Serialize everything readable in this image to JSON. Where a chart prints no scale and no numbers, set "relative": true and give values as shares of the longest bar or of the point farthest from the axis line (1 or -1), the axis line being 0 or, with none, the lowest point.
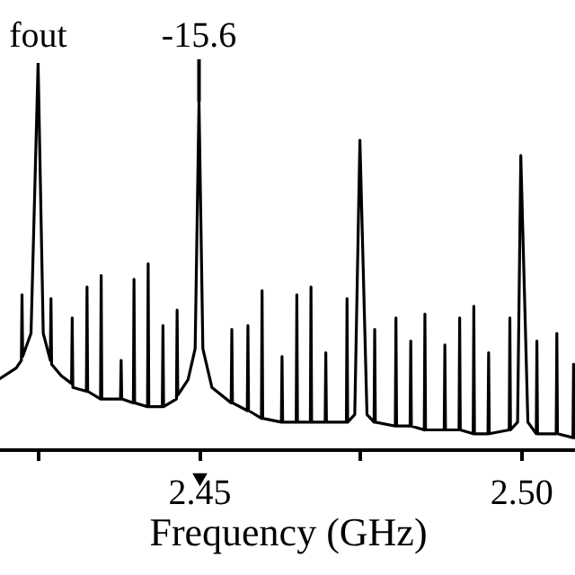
{
  "chart_data": {
    "type": "line",
    "relative": true,
    "xlabel": "Frequency (GHz)",
    "color": "#000000",
    "annotations": [
      {
        "text": "fout",
        "x": 2.425,
        "y": 1.0
      },
      {
        "text": "-15.6",
        "x": 2.45,
        "y": 0.9
      }
    ],
    "xlim": [
      2.4188,
      2.5087
    ],
    "xticks": [
      {
        "value": 2.425,
        "label": null
      },
      {
        "value": 2.45,
        "label": "2.45"
      },
      {
        "value": 2.475,
        "label": null
      },
      {
        "value": 2.5,
        "label": "2.50"
      }
    ],
    "x": [
      2.4188,
      2.4216,
      2.4224,
      2.4225,
      2.4226,
      2.4239,
      2.425,
      2.4258,
      2.4269,
      2.427,
      2.4271,
      2.4286,
      2.4302,
      2.4303,
      2.4304,
      2.4325,
      2.4326,
      2.4327,
      2.4347,
      2.4348,
      2.4349,
      2.4378,
      2.4379,
      2.438,
      2.4398,
      2.4399,
      2.44,
      2.442,
      2.4421,
      2.4422,
      2.4443,
      2.4444,
      2.4445,
      2.4465,
      2.4466,
      2.4467,
      2.4483,
      2.4494,
      2.45,
      2.4506,
      2.452,
      2.455,
      2.4551,
      2.4552,
      2.4575,
      2.4576,
      2.4577,
      2.4597,
      2.4598,
      2.4599,
      2.4628,
      2.4629,
      2.463,
      2.4651,
      2.4652,
      2.4653,
      2.4673,
      2.4674,
      2.4675,
      2.4696,
      2.4697,
      2.4698,
      2.4729,
      2.473,
      2.4731,
      2.4742,
      2.475,
      2.4761,
      2.4772,
      2.4773,
      2.4774,
      2.4805,
      2.4806,
      2.4807,
      2.4828,
      2.4829,
      2.483,
      2.485,
      2.4851,
      2.4852,
      2.4881,
      2.4882,
      2.4883,
      2.4904,
      2.4905,
      2.4906,
      2.4926,
      2.4927,
      2.4928,
      2.4949,
      2.495,
      2.4951,
      2.4982,
      2.4983,
      2.4984,
      2.4995,
      2.5,
      2.5011,
      2.5024,
      2.5025,
      2.5026,
      2.5055,
      2.5056,
      2.5057,
      2.5081,
      2.5082,
      2.5083,
      2.5087
    ],
    "values": [
      0.18,
      0.21,
      0.23,
      0.4,
      0.24,
      0.3,
      1.0,
      0.3,
      0.23,
      0.39,
      0.22,
      0.19,
      0.17,
      0.34,
      0.16,
      0.15,
      0.42,
      0.15,
      0.13,
      0.45,
      0.13,
      0.13,
      0.23,
      0.13,
      0.12,
      0.44,
      0.12,
      0.11,
      0.48,
      0.11,
      0.11,
      0.32,
      0.11,
      0.13,
      0.36,
      0.14,
      0.18,
      0.26,
      0.9,
      0.26,
      0.16,
      0.12,
      0.31,
      0.12,
      0.1,
      0.32,
      0.1,
      0.08,
      0.41,
      0.08,
      0.07,
      0.24,
      0.07,
      0.07,
      0.4,
      0.07,
      0.07,
      0.42,
      0.07,
      0.07,
      0.25,
      0.07,
      0.07,
      0.39,
      0.07,
      0.09,
      0.8,
      0.09,
      0.07,
      0.31,
      0.07,
      0.06,
      0.34,
      0.06,
      0.06,
      0.28,
      0.06,
      0.05,
      0.35,
      0.05,
      0.05,
      0.27,
      0.05,
      0.05,
      0.34,
      0.05,
      0.04,
      0.37,
      0.04,
      0.04,
      0.25,
      0.04,
      0.05,
      0.34,
      0.05,
      0.07,
      0.76,
      0.07,
      0.04,
      0.28,
      0.04,
      0.04,
      0.3,
      0.04,
      0.03,
      0.22,
      0.03,
      0.03
    ]
  }
}
